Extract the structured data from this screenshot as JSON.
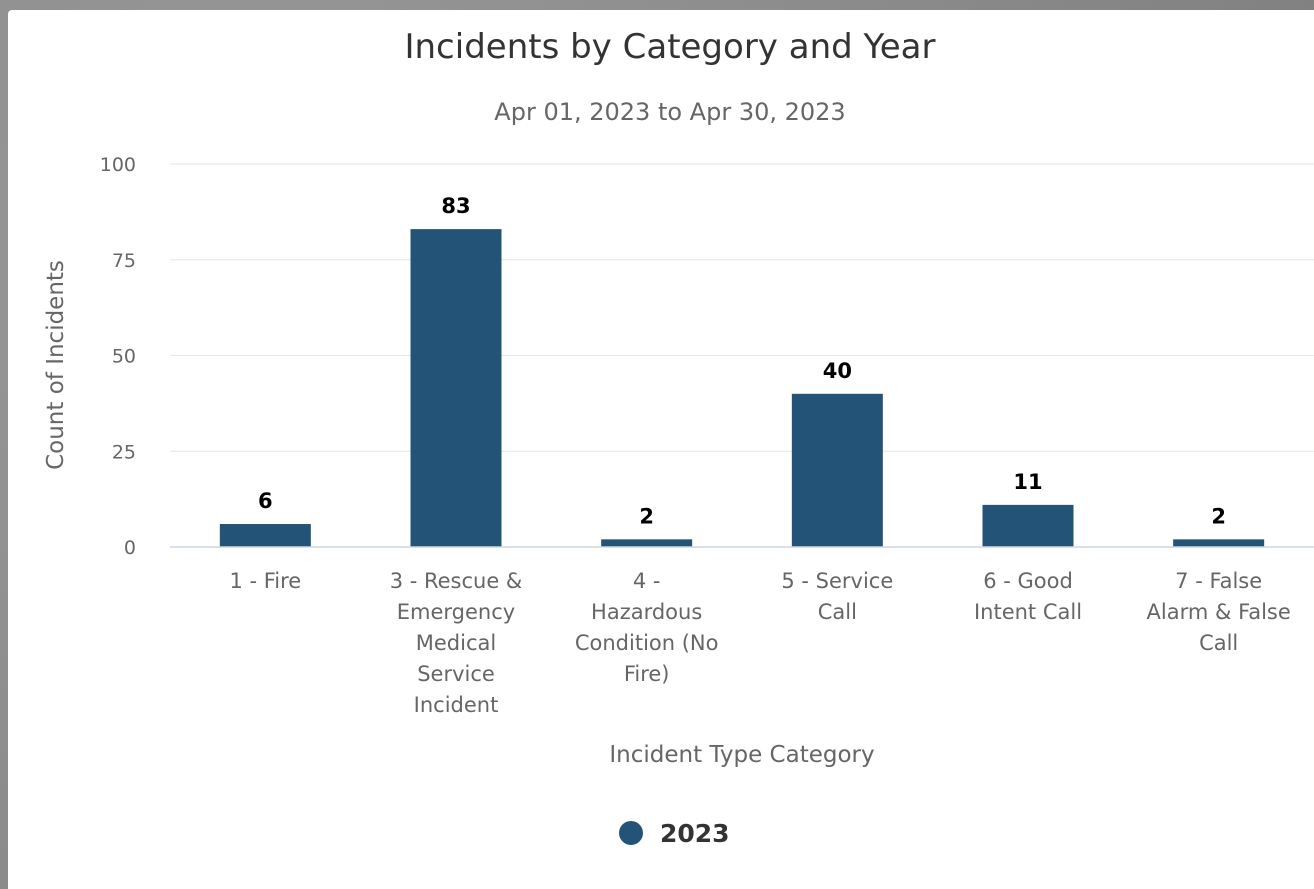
{
  "chart_data": {
    "type": "bar",
    "title": "Incidents by Category and Year",
    "subtitle": "Apr 01, 2023 to Apr 30, 2023",
    "xlabel": "Incident Type Category",
    "ylabel": "Count of Incidents",
    "categories": [
      "1 - Fire",
      "3 - Rescue & Emergency Medical Service Incident",
      "4 - Hazardous Condition (No Fire)",
      "5 - Service Call",
      "6 - Good Intent Call",
      "7 - False Alarm & False Call"
    ],
    "category_lines": [
      [
        "1 - Fire"
      ],
      [
        "3 - Rescue &",
        "Emergency",
        "Medical",
        "Service",
        "Incident"
      ],
      [
        "4 -",
        "Hazardous",
        "Condition (No",
        "Fire)"
      ],
      [
        "5 - Service",
        "Call"
      ],
      [
        "6 - Good",
        "Intent Call"
      ],
      [
        "7 - False",
        "Alarm & False",
        "Call"
      ]
    ],
    "series": [
      {
        "name": "2023",
        "values": [
          6,
          83,
          2,
          40,
          11,
          2
        ],
        "color": "#235478"
      }
    ],
    "ylim": [
      0,
      100
    ],
    "yticks": [
      0,
      25,
      50,
      75,
      100
    ],
    "grid": true,
    "legend_position": "bottom-center",
    "data_labels": true
  }
}
